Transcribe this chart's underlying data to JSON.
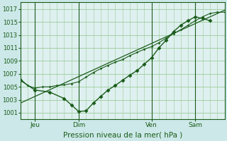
{
  "background_color": "#cce8e8",
  "plot_bg": "#dff0f0",
  "grid_color": "#99cc99",
  "line_color": "#1a5c1a",
  "title": "Pression niveau de la mer( hPa )",
  "yticks": [
    1001,
    1003,
    1005,
    1007,
    1009,
    1011,
    1013,
    1015,
    1017
  ],
  "ylim": [
    1000.0,
    1018.0
  ],
  "xlim": [
    0,
    84
  ],
  "xtick_positions": [
    6,
    24,
    54,
    72
  ],
  "xtick_labels": [
    "Jeu",
    "Dim",
    "Ven",
    "Sam"
  ],
  "vlines": [
    6,
    24,
    54,
    72
  ],
  "series1_x": [
    0,
    3,
    6,
    9,
    12,
    15,
    18,
    21,
    24,
    27,
    30,
    33,
    36,
    39,
    42,
    45,
    48,
    51,
    54,
    57,
    60,
    63,
    66,
    69,
    72,
    75,
    78,
    81,
    84
  ],
  "series1_y": [
    1006.2,
    1005.2,
    1004.8,
    1005.0,
    1005.0,
    1005.2,
    1005.3,
    1005.5,
    1005.8,
    1006.5,
    1007.2,
    1007.8,
    1008.3,
    1008.8,
    1009.2,
    1009.8,
    1010.3,
    1010.8,
    1011.2,
    1011.8,
    1012.5,
    1013.2,
    1013.8,
    1014.5,
    1015.2,
    1015.8,
    1016.3,
    1016.5,
    1016.5
  ],
  "series2_x": [
    0,
    6,
    12,
    18,
    21,
    24,
    27,
    30,
    33,
    36,
    39,
    42,
    45,
    48,
    51,
    54,
    57,
    60,
    63,
    66,
    69,
    72,
    75,
    78
  ],
  "series2_y": [
    1006.0,
    1004.5,
    1004.2,
    1003.2,
    1002.2,
    1001.2,
    1001.3,
    1002.5,
    1003.5,
    1004.5,
    1005.2,
    1006.0,
    1006.8,
    1007.5,
    1008.5,
    1009.5,
    1011.0,
    1012.2,
    1013.5,
    1014.5,
    1015.2,
    1015.8,
    1015.5,
    1015.2
  ],
  "series3_x": [
    0,
    84
  ],
  "series3_y": [
    1002.5,
    1016.8
  ],
  "marker_x": [
    0,
    6,
    12,
    18,
    21,
    24,
    27,
    30,
    33,
    36,
    39,
    42,
    45,
    48,
    51,
    54,
    57,
    60,
    63,
    66,
    69,
    72,
    75,
    78
  ],
  "marker_y": [
    1006.0,
    1004.5,
    1004.2,
    1003.2,
    1002.2,
    1001.2,
    1001.3,
    1002.5,
    1003.5,
    1004.5,
    1005.2,
    1006.0,
    1006.8,
    1007.5,
    1008.5,
    1009.5,
    1011.0,
    1012.2,
    1013.5,
    1014.5,
    1015.2,
    1015.8,
    1015.5,
    1015.2
  ]
}
